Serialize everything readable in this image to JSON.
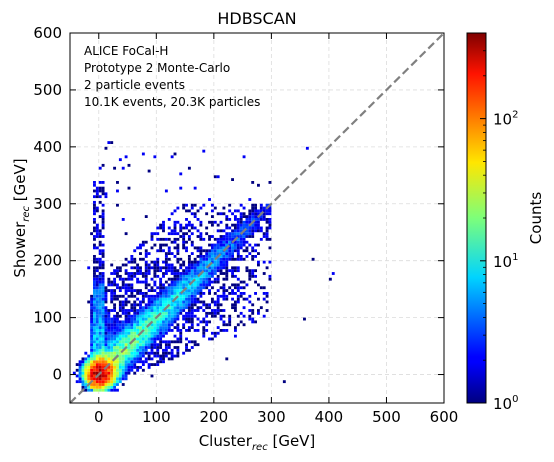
{
  "chart_data": {
    "type": "heatmap",
    "title": "HDBSCAN",
    "xlabel_main": "Cluster",
    "xlabel_sub": "rec",
    "xlabel_unit": " [GeV]",
    "ylabel_main": "Shower",
    "ylabel_sub": "rec",
    "ylabel_unit": " [GeV]",
    "xlim": [
      -50,
      600
    ],
    "ylim": [
      -50,
      600
    ],
    "xticks": [
      0,
      100,
      200,
      300,
      400,
      500,
      600
    ],
    "yticks": [
      0,
      100,
      200,
      300,
      400,
      500,
      600
    ],
    "grid": true,
    "annotation": [
      "ALICE FoCal-H",
      "Prototype 2 Monte-Carlo",
      "2 particle events",
      "10.1K events, 20.3K particles"
    ],
    "diagonal": {
      "from": [
        -50,
        -50
      ],
      "to": [
        600,
        600
      ],
      "style": "dashed",
      "color": "#808080"
    },
    "colorbar": {
      "label": "Counts",
      "scale": "log",
      "range": [
        1,
        400
      ],
      "ticks": [
        {
          "base": "10",
          "exp": "0"
        },
        {
          "base": "10",
          "exp": "1"
        },
        {
          "base": "10",
          "exp": "2"
        }
      ],
      "colormap": "jet"
    },
    "density_regions": [
      {
        "x_range": [
          -20,
          290
        ],
        "y_range": [
          -20,
          290
        ],
        "description": "main triangular band below diagonal",
        "peak_counts": 30
      },
      {
        "x_range": [
          -10,
          10
        ],
        "y_range": [
          -30,
          340
        ],
        "description": "vertical band at zero cluster energy",
        "peak_counts": 10
      },
      {
        "x_range": [
          -15,
          20
        ],
        "y_range": [
          -20,
          20
        ],
        "description": "core near origin",
        "peak_counts": 300
      }
    ]
  }
}
